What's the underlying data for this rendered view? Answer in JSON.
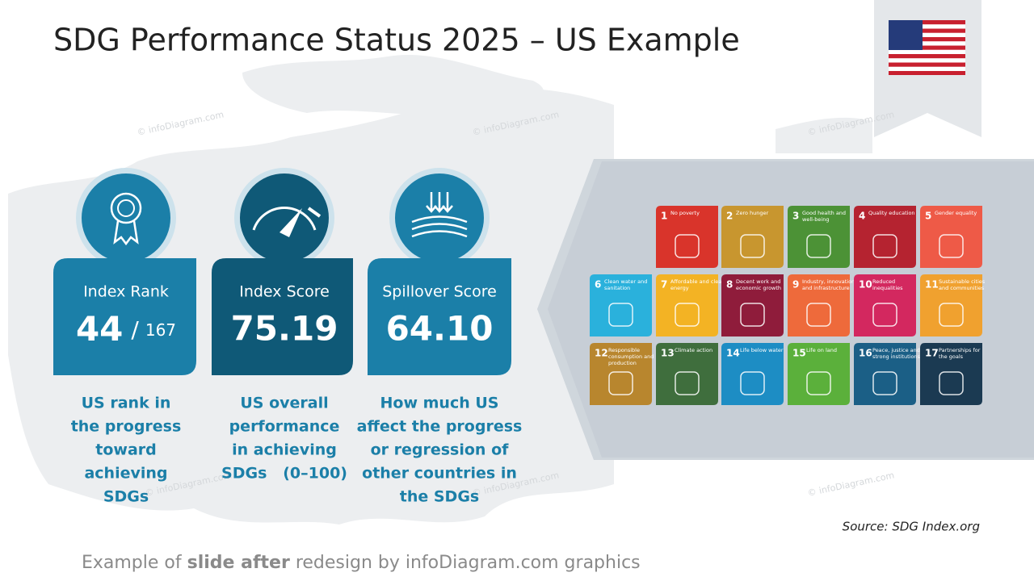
{
  "header": {
    "title": "SDG Performance Status 2025 – US Example"
  },
  "watermark": "© infoDiagram.com",
  "cards": [
    {
      "label": "Index Rank",
      "value": "44",
      "separator": "/",
      "total": "167",
      "color": "#1b7fa8",
      "description": [
        "US rank in",
        "the progress",
        "toward",
        "achieving",
        "SDGs"
      ]
    },
    {
      "label": "Index Score",
      "value": "75.19",
      "color": "#0f5977",
      "description": [
        "US overall",
        "performance",
        "in achieving",
        "SDGs   (0–100)"
      ]
    },
    {
      "label": "Spillover Score",
      "value": "64.10",
      "color": "#1b7fa8",
      "description": [
        "How much US",
        "affect the progress",
        "or regression of",
        "other countries in",
        "the SDGs"
      ]
    }
  ],
  "goals": [
    {
      "number": 1,
      "label": "No poverty",
      "color": "#d9342b"
    },
    {
      "number": 2,
      "label": "Zero hunger",
      "color": "#c8962f"
    },
    {
      "number": 3,
      "label": "Good health and well-being",
      "color": "#4c9236"
    },
    {
      "number": 4,
      "label": "Quality education",
      "color": "#b52330"
    },
    {
      "number": 5,
      "label": "Gender equality",
      "color": "#ee5a47"
    },
    {
      "number": 6,
      "label": "Clean water and sanitation",
      "color": "#2ab1dc"
    },
    {
      "number": 7,
      "label": "Affordable and clean energy",
      "color": "#f3b324"
    },
    {
      "number": 8,
      "label": "Decent work and economic growth",
      "color": "#8f1c3b"
    },
    {
      "number": 9,
      "label": "Industry, innovation and infrastructure",
      "color": "#ee6a3b"
    },
    {
      "number": 10,
      "label": "Reduced inequalities",
      "color": "#d3285f"
    },
    {
      "number": 11,
      "label": "Sustainable cities and communities",
      "color": "#f0a12f"
    },
    {
      "number": 12,
      "label": "Responsible consumption and production",
      "color": "#b8862e"
    },
    {
      "number": 13,
      "label": "Climate action",
      "color": "#3f6e3d"
    },
    {
      "number": 14,
      "label": "Life below water",
      "color": "#1d8dc4"
    },
    {
      "number": 15,
      "label": "Life on land",
      "color": "#5bb03b"
    },
    {
      "number": 16,
      "label": "Peace, justice and strong institutions",
      "color": "#1b5f86"
    },
    {
      "number": 17,
      "label": "Partnerships for the goals",
      "color": "#1b3a52"
    }
  ],
  "source": "Source: SDG Index.org",
  "footer": {
    "parts": [
      {
        "text": "Example of ",
        "bold": false
      },
      {
        "text": "slide after",
        "bold": true
      },
      {
        "text": " redesign by infoDiagram.com graphics",
        "bold": false
      }
    ]
  }
}
